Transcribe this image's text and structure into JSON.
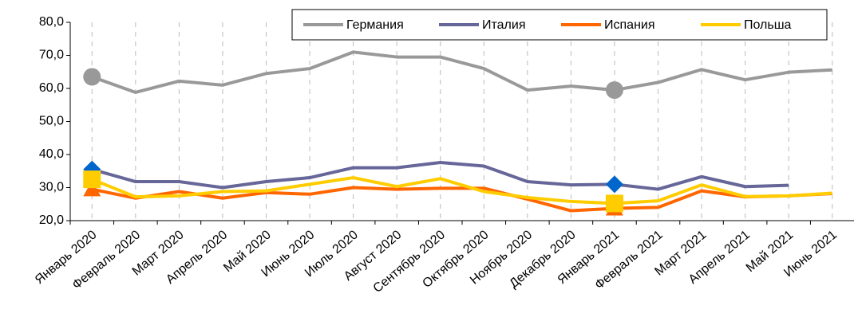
{
  "chart_data": {
    "type": "line",
    "categories": [
      "Январь 2020",
      "Февраль 2020",
      "Март 2020",
      "Апрель 2020",
      "Май 2020",
      "Июнь 2020",
      "Июль 2020",
      "Август 2020",
      "Сентябрь 2020",
      "Октябрь 2020",
      "Ноябрь 2020",
      "Декабрь 2020",
      "Январь 2021",
      "Февраль 2021",
      "Март 2021",
      "Апрель 2021",
      "Май 2021",
      "Июнь 2021"
    ],
    "series": [
      {
        "name": "Германия",
        "color": "#999999",
        "marker": "circle",
        "marker_color": "#999999",
        "marker_indices": [
          0,
          12
        ],
        "values": [
          63.5,
          58.8,
          62.2,
          61,
          64.5,
          66,
          71,
          69.5,
          69.5,
          66,
          59.5,
          60.7,
          59.5,
          61.8,
          65.7,
          62.6,
          64.9,
          65.6
        ]
      },
      {
        "name": "Италия",
        "color": "#666699",
        "marker": "diamond",
        "marker_color": "#0066cc",
        "marker_indices": [
          0,
          12
        ],
        "values": [
          35.5,
          31.8,
          31.8,
          30,
          31.8,
          33,
          36,
          36,
          37.6,
          36.5,
          31.8,
          30.8,
          31,
          29.5,
          33.3,
          30.3,
          30.7,
          null
        ]
      },
      {
        "name": "Испания",
        "color": "#ff6600",
        "marker": "triangle",
        "marker_color": "#ff6600",
        "marker_indices": [
          0,
          12
        ],
        "values": [
          29.5,
          26.8,
          28.8,
          26.8,
          28.5,
          28,
          30,
          29.5,
          29.8,
          29.8,
          26.5,
          23,
          23.7,
          24,
          29,
          27.2,
          27.5,
          28.2
        ]
      },
      {
        "name": "Польша",
        "color": "#ffcc00",
        "marker": "square",
        "marker_color": "#ffcc00",
        "marker_indices": [
          0,
          12
        ],
        "values": [
          32.5,
          27.2,
          27.5,
          28.8,
          29,
          31,
          33,
          30.3,
          32.7,
          28.8,
          27,
          25.8,
          25.2,
          26,
          30.8,
          27.3,
          27.5,
          28.3
        ]
      }
    ],
    "ylim": [
      20,
      80
    ],
    "yticks": [
      {
        "value": 20,
        "label": "20,0"
      },
      {
        "value": 30,
        "label": "30,0"
      },
      {
        "value": 40,
        "label": "40,0"
      },
      {
        "value": 50,
        "label": "50,0"
      },
      {
        "value": 60,
        "label": "60,0"
      },
      {
        "value": 70,
        "label": "70,0"
      },
      {
        "value": 80,
        "label": "80,0"
      }
    ],
    "legend": "top-right"
  }
}
